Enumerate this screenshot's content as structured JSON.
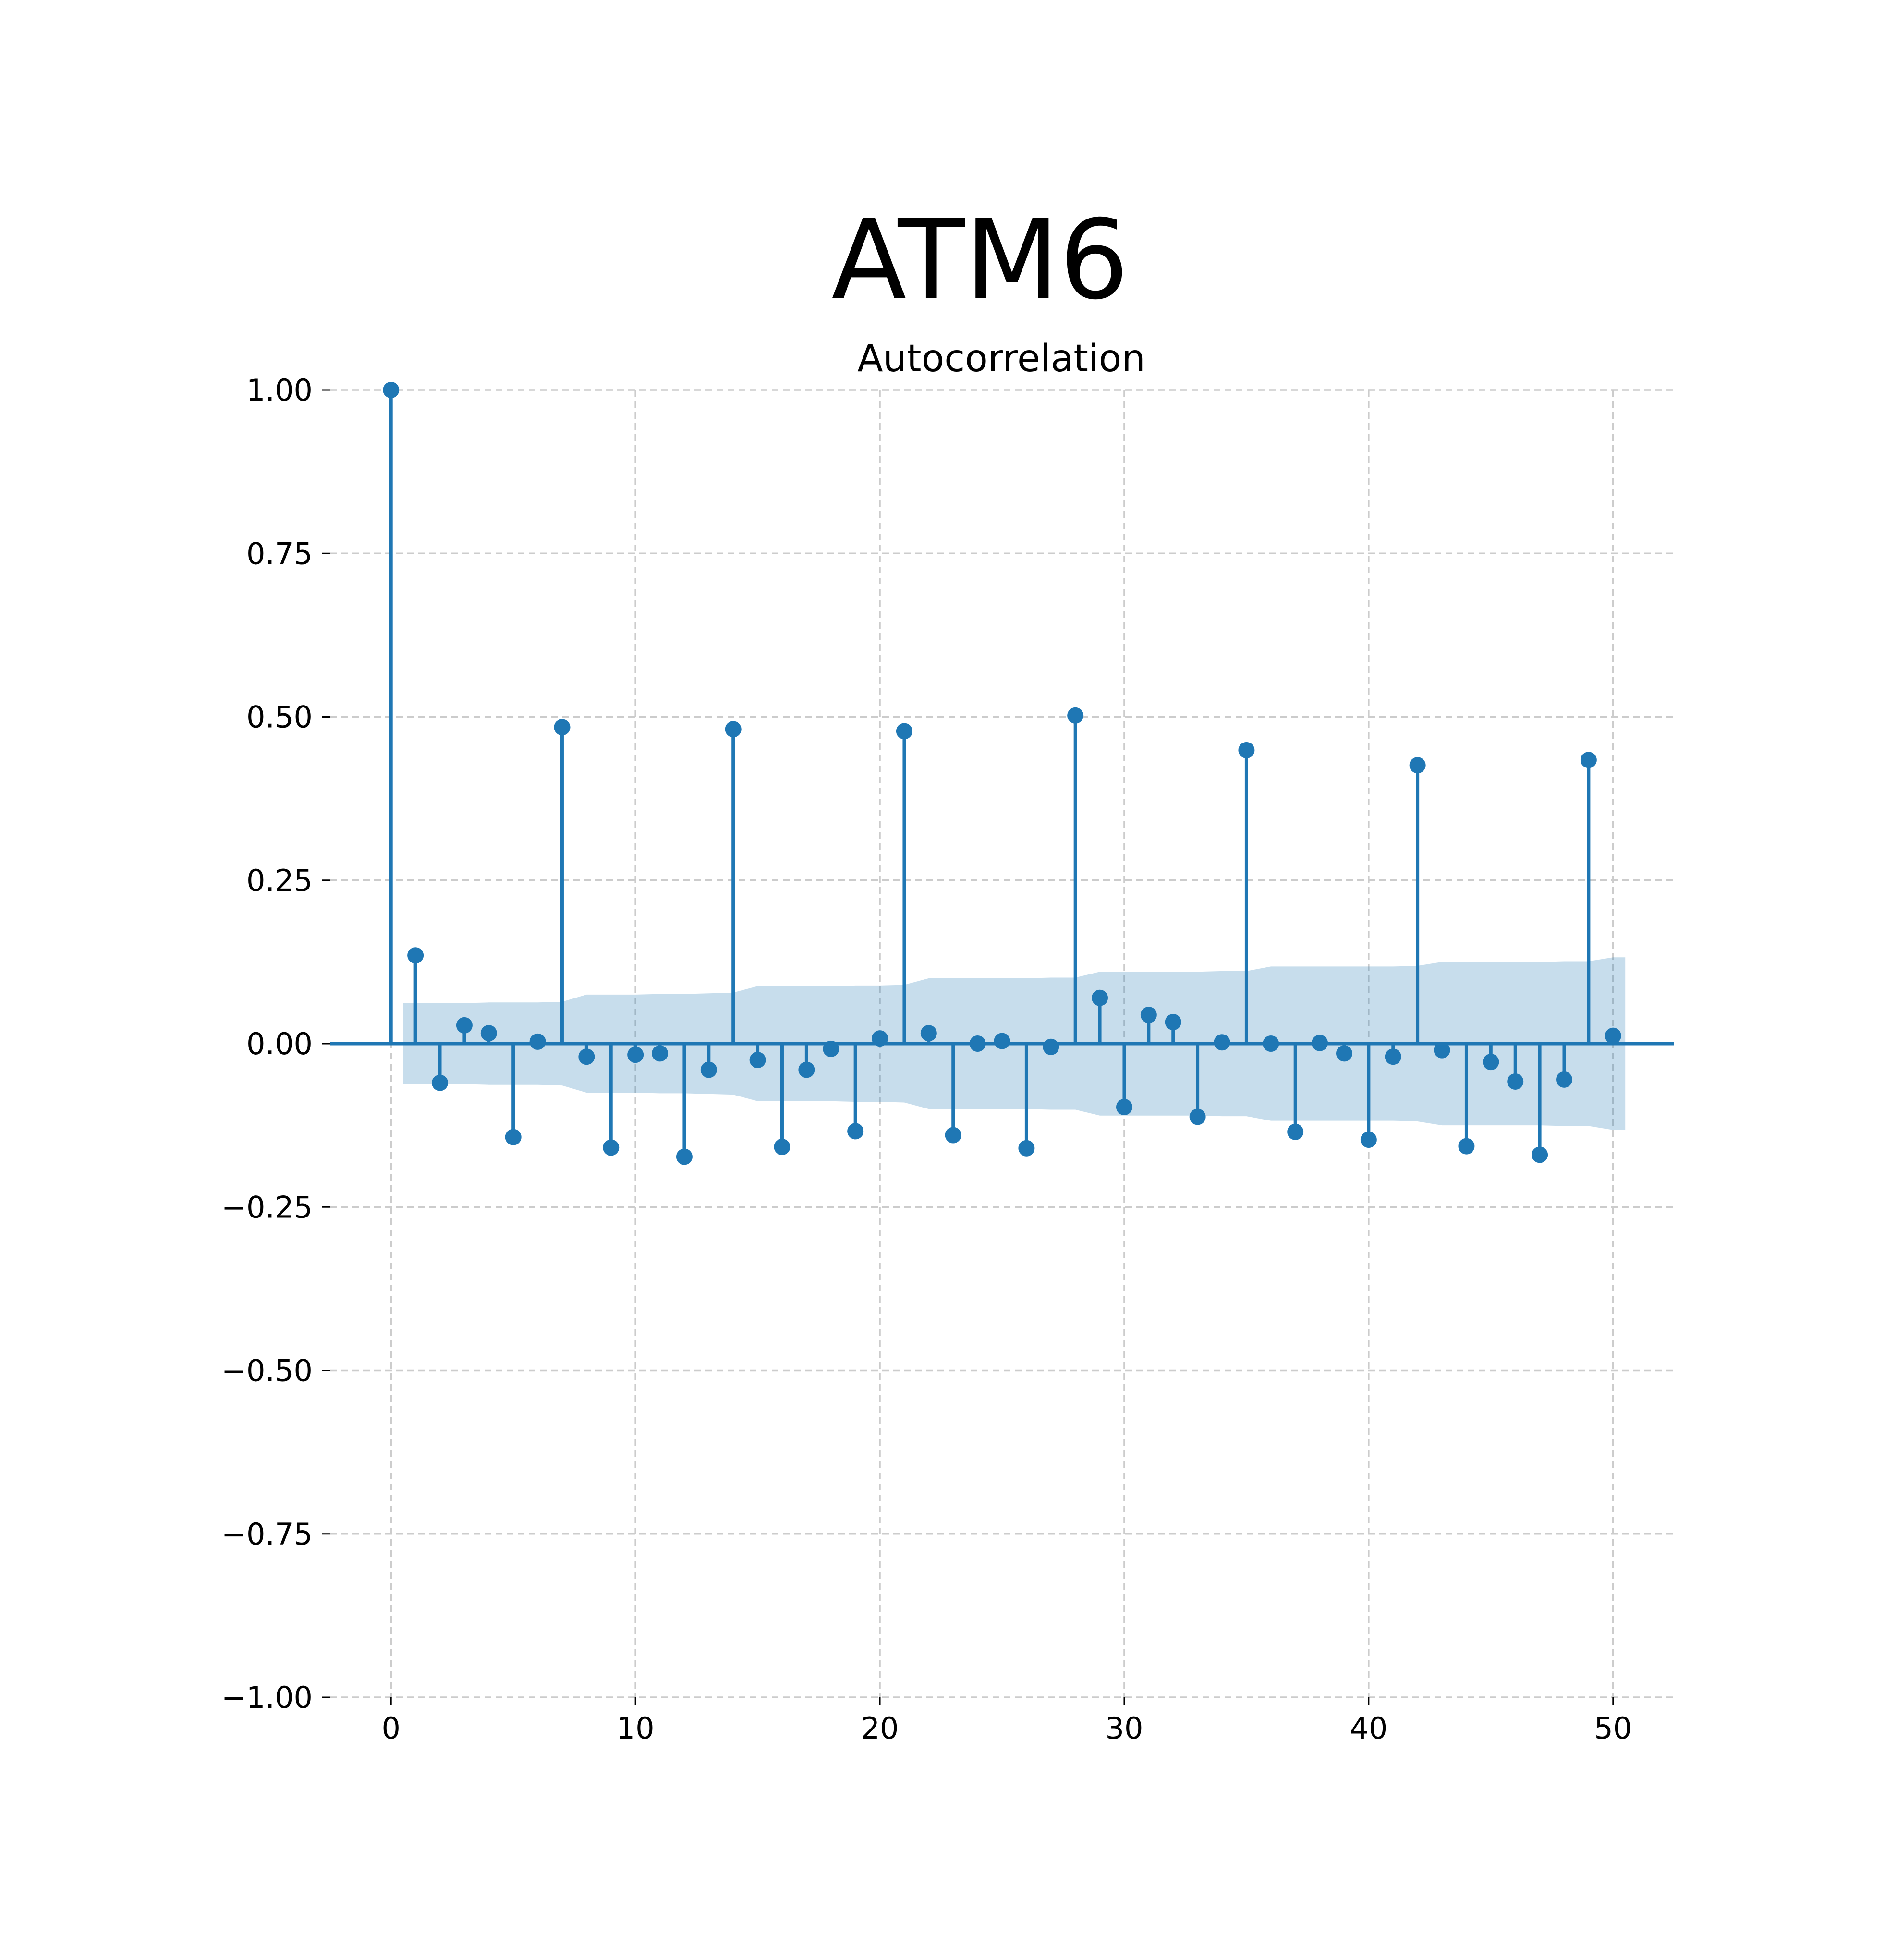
{
  "figure": {
    "suptitle": "ATM6"
  },
  "chart_data": {
    "type": "stem",
    "title": "Autocorrelation",
    "xlabel": "",
    "ylabel": "",
    "xlim": [
      -2.5,
      52.5
    ],
    "ylim": [
      -1.0,
      1.0
    ],
    "grid": true,
    "grid_style": "dashed",
    "legend": "none",
    "x_ticks": [
      0,
      10,
      20,
      30,
      40,
      50
    ],
    "x_tick_labels": [
      "0",
      "10",
      "20",
      "30",
      "40",
      "50"
    ],
    "y_ticks": [
      1.0,
      0.75,
      0.5,
      0.25,
      0.0,
      -0.25,
      -0.5,
      -0.75,
      -1.0
    ],
    "y_tick_labels": [
      "1.00",
      "0.75",
      "0.50",
      "0.25",
      "0.00",
      "−0.25",
      "−0.50",
      "−0.75",
      "−1.00"
    ],
    "colors": {
      "stem": "#1f77b4",
      "confidence_band": "#1f77b4"
    },
    "lags": [
      0,
      1,
      2,
      3,
      4,
      5,
      6,
      7,
      8,
      9,
      10,
      11,
      12,
      13,
      14,
      15,
      16,
      17,
      18,
      19,
      20,
      21,
      22,
      23,
      24,
      25,
      26,
      27,
      28,
      29,
      30,
      31,
      32,
      33,
      34,
      35,
      36,
      37,
      38,
      39,
      40,
      41,
      42,
      43,
      44,
      45,
      46,
      47,
      48,
      49,
      50
    ],
    "values": [
      1.0,
      0.135,
      -0.06,
      0.028,
      0.016,
      -0.143,
      0.003,
      0.484,
      -0.02,
      -0.159,
      -0.017,
      -0.015,
      -0.173,
      -0.04,
      0.481,
      -0.025,
      -0.158,
      -0.04,
      -0.008,
      -0.134,
      0.008,
      0.478,
      0.016,
      -0.14,
      0.0,
      0.004,
      -0.16,
      -0.005,
      0.502,
      0.07,
      -0.097,
      0.044,
      0.033,
      -0.112,
      0.002,
      0.449,
      0.0,
      -0.135,
      0.001,
      -0.015,
      -0.147,
      -0.02,
      0.426,
      -0.01,
      -0.157,
      -0.028,
      -0.058,
      -0.17,
      -0.055,
      0.434,
      0.012
    ],
    "confidence_interval": {
      "lags": [
        0.5,
        1,
        2,
        3,
        4,
        5,
        6,
        7,
        8,
        9,
        10,
        11,
        12,
        13,
        14,
        15,
        16,
        17,
        18,
        19,
        20,
        21,
        22,
        23,
        24,
        25,
        26,
        27,
        28,
        29,
        30,
        31,
        32,
        33,
        34,
        35,
        36,
        37,
        38,
        39,
        40,
        41,
        42,
        43,
        44,
        45,
        46,
        47,
        48,
        49,
        50,
        50.5
      ],
      "upper": [
        0.062,
        0.062,
        0.062,
        0.062,
        0.063,
        0.063,
        0.063,
        0.064,
        0.075,
        0.075,
        0.075,
        0.076,
        0.076,
        0.077,
        0.078,
        0.088,
        0.088,
        0.088,
        0.088,
        0.089,
        0.089,
        0.09,
        0.1,
        0.1,
        0.1,
        0.1,
        0.1,
        0.101,
        0.101,
        0.11,
        0.11,
        0.11,
        0.11,
        0.11,
        0.111,
        0.111,
        0.118,
        0.118,
        0.118,
        0.118,
        0.118,
        0.118,
        0.119,
        0.125,
        0.125,
        0.125,
        0.125,
        0.125,
        0.126,
        0.126,
        0.132,
        0.132
      ]
    }
  }
}
